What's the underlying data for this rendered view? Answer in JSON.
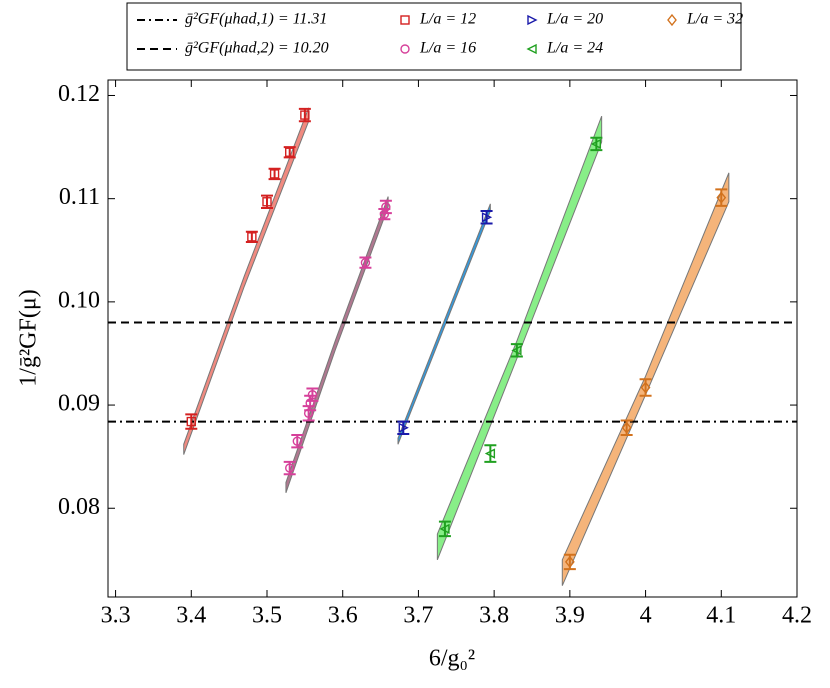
{
  "chart_data": {
    "type": "scatter",
    "x_label": "6/g₀²",
    "y_label": "1/ḡ²GF(μ)",
    "xlim": [
      3.29,
      4.2
    ],
    "ylim": [
      0.0714,
      0.1215
    ],
    "xticks": [
      3.3,
      3.4,
      3.5,
      3.6,
      3.7,
      3.8,
      3.9,
      {
        "value": 4,
        "label": "4"
      },
      4.1,
      4.2
    ],
    "yticks": [
      0.08,
      0.09,
      {
        "value": 0.1,
        "label": "0.10"
      },
      0.11,
      0.12
    ],
    "hlines": [
      {
        "name": "ḡ²GF(μhad,1) = 11.31",
        "value": 0.0884,
        "dash": "dashdot"
      },
      {
        "name": "ḡ²GF(μhad,2) = 10.20",
        "value": 0.098,
        "dash": "dashed"
      }
    ],
    "series": [
      {
        "name": "L/a = 12",
        "color": "#d42020",
        "marker": "square",
        "band_color": "#f08a80",
        "x": [
          3.4,
          3.48,
          3.5,
          3.51,
          3.53,
          3.55
        ],
        "values": [
          0.0884,
          0.1063,
          0.1097,
          0.1124,
          0.1145,
          0.1181
        ],
        "errors": [
          0.0007,
          0.0005,
          0.0006,
          0.0005,
          0.0005,
          0.0006
        ],
        "band": {
          "x": [
            3.39,
            3.47,
            3.555
          ],
          "lower": [
            0.0852,
            0.1015,
            0.1175
          ],
          "upper": [
            0.0862,
            0.1025,
            0.1188
          ]
        }
      },
      {
        "name": "L/a = 16",
        "color": "#d6409a",
        "marker": "circle",
        "band_color": "#b07890",
        "x": [
          3.53,
          3.54,
          3.555,
          3.557,
          3.56,
          3.63,
          3.655,
          3.657
        ],
        "values": [
          0.0839,
          0.0865,
          0.0892,
          0.0902,
          0.091,
          0.1038,
          0.1085,
          0.1092
        ],
        "errors": [
          0.0006,
          0.0006,
          0.0007,
          0.0007,
          0.0006,
          0.0005,
          0.0005,
          0.0006
        ],
        "band": {
          "x": [
            3.525,
            3.59,
            3.66
          ],
          "lower": [
            0.0815,
            0.0953,
            0.1092
          ],
          "upper": [
            0.0825,
            0.0962,
            0.1102
          ]
        }
      },
      {
        "name": "L/a = 20",
        "color": "#1a1aaa",
        "marker": "triright",
        "band_color": "#3399dd",
        "x": [
          3.68,
          3.79
        ],
        "values": [
          0.0878,
          0.1082
        ],
        "errors": [
          0.0006,
          0.0006
        ],
        "band": {
          "x": [
            3.673,
            3.795
          ],
          "lower": [
            0.0862,
            0.1088
          ],
          "upper": [
            0.0868,
            0.1095
          ]
        }
      },
      {
        "name": "L/a = 24",
        "color": "#20a020",
        "marker": "trileft",
        "band_color": "#88ee88",
        "x": [
          3.735,
          3.795,
          3.83,
          3.935
        ],
        "values": [
          0.078,
          0.0853,
          0.0953,
          0.1153
        ],
        "errors": [
          0.0007,
          0.0008,
          0.0006,
          0.0006
        ],
        "band": {
          "x": [
            3.725,
            3.83,
            3.942
          ],
          "lower": [
            0.075,
            0.0945,
            0.1155
          ],
          "upper": [
            0.0775,
            0.0962,
            0.118
          ]
        }
      },
      {
        "name": "L/a = 32",
        "color": "#d2721d",
        "marker": "diamond",
        "band_color": "#f5b47a",
        "x": [
          3.9,
          3.975,
          4.0,
          4.1
        ],
        "values": [
          0.0748,
          0.0878,
          0.0917,
          0.1101
        ],
        "errors": [
          0.0007,
          0.0007,
          0.0008,
          0.0008
        ],
        "band": {
          "x": [
            3.89,
            4.0,
            4.11
          ],
          "lower": [
            0.0725,
            0.091,
            0.1097
          ],
          "upper": [
            0.075,
            0.0928,
            0.1125
          ]
        }
      }
    ]
  }
}
